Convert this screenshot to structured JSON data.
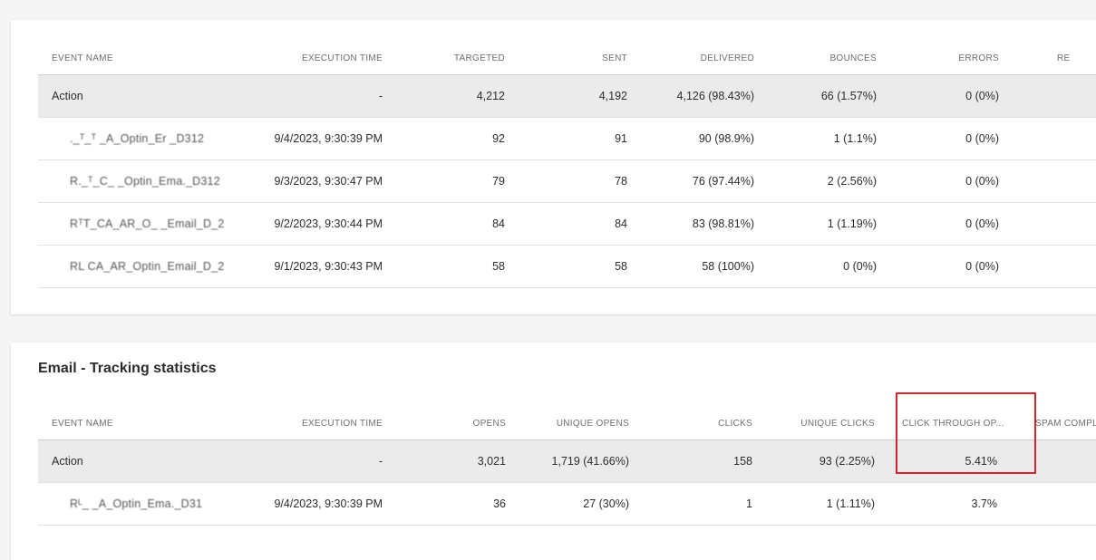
{
  "delivery": {
    "columns": [
      "EVENT NAME",
      "EXECUTION TIME",
      "TARGETED",
      "SENT",
      "DELIVERED",
      "BOUNCES",
      "ERRORS",
      "RE"
    ],
    "rows": [
      {
        "name": "Action",
        "time": "-",
        "targeted": "4,212",
        "sent": "4,192",
        "delivered": "4,126 (98.43%)",
        "bounces": "66 (1.57%)",
        "errors": "0 (0%)"
      },
      {
        "name": "._ᵀ_ᵀ _A_Optin_Er    _D312",
        "time": "9/4/2023, 9:30:39 PM",
        "targeted": "92",
        "sent": "91",
        "delivered": "90 (98.9%)",
        "bounces": "1 (1.1%)",
        "errors": "0 (0%)"
      },
      {
        "name": "R._ᵀ_C_  _Optin_Ema._D312",
        "time": "9/3/2023, 9:30:47 PM",
        "targeted": "79",
        "sent": "78",
        "delivered": "76 (97.44%)",
        "bounces": "2 (2.56%)",
        "errors": "0 (0%)"
      },
      {
        "name": "RᵀT_CA_AR_O_ _Email_D_2",
        "time": "9/2/2023, 9:30:44 PM",
        "targeted": "84",
        "sent": "84",
        "delivered": "83 (98.81%)",
        "bounces": "1 (1.19%)",
        "errors": "0 (0%)"
      },
      {
        "name": "RL   CA_AR_Optin_Email_D_2",
        "time": "9/1/2023, 9:30:43 PM",
        "targeted": "58",
        "sent": "58",
        "delivered": "58 (100%)",
        "bounces": "0 (0%)",
        "errors": "0 (0%)"
      }
    ]
  },
  "tracking": {
    "title": "Email - Tracking statistics",
    "columns": [
      "EVENT NAME",
      "EXECUTION TIME",
      "OPENS",
      "UNIQUE OPENS",
      "CLICKS",
      "UNIQUE CLICKS",
      "CLICK THROUGH OP...",
      "SPAM COMPL..."
    ],
    "rows": [
      {
        "name": "Action",
        "time": "-",
        "opens": "3,021",
        "unique_opens": "1,719 (41.66%)",
        "clicks": "158",
        "unique_clicks": "93 (2.25%)",
        "ctor": "5.41%"
      },
      {
        "name": "Rᴸ_ _A_Optin_Ema._D31",
        "time": "9/4/2023, 9:30:39 PM",
        "opens": "36",
        "unique_opens": "27 (30%)",
        "clicks": "1",
        "unique_clicks": "1 (1.11%)",
        "ctor": "3.7%"
      }
    ]
  },
  "highlight_color": "#d7242c"
}
